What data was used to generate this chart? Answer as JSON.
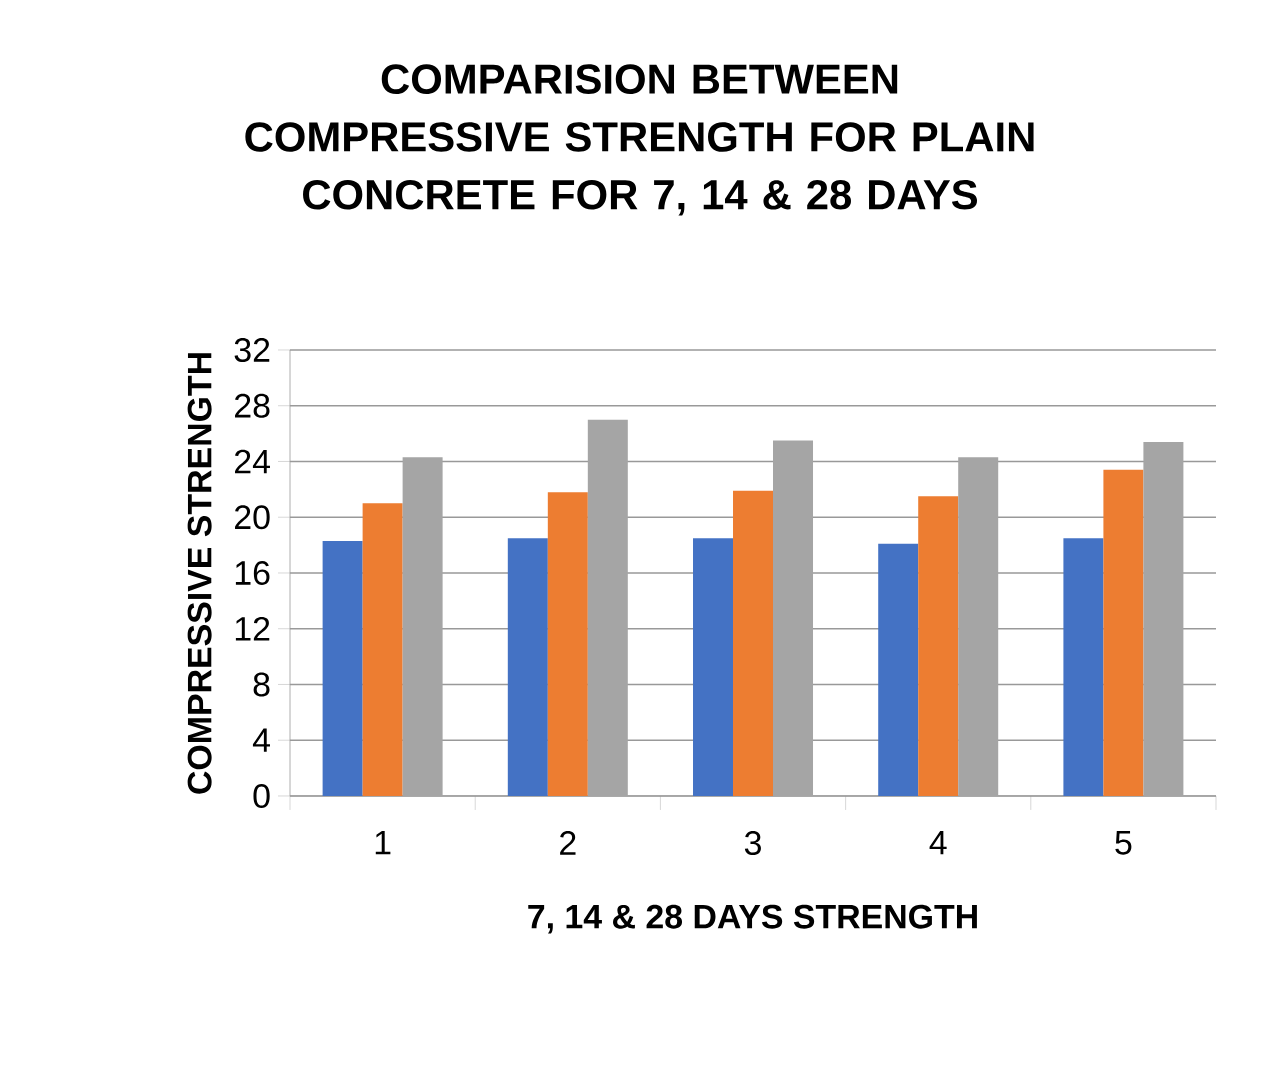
{
  "chart_data": {
    "type": "bar",
    "title": "COMPARISION BETWEEN COMPRESSIVE STRENGTH FOR PLAIN CONCRETE FOR 7, 14 & 28 DAYS",
    "xlabel": "7, 14 & 28 DAYS STRENGTH",
    "ylabel": "COMPRESSIVE STRENGTH",
    "categories": [
      "1",
      "2",
      "3",
      "4",
      "5"
    ],
    "series": [
      {
        "color": "#4472c4",
        "values": [
          18.3,
          18.5,
          18.5,
          18.1,
          18.5
        ]
      },
      {
        "color": "#ed7d31",
        "values": [
          21.0,
          21.8,
          21.9,
          21.5,
          23.4
        ]
      },
      {
        "color": "#a5a5a5",
        "values": [
          24.3,
          27.0,
          25.5,
          24.3,
          25.4
        ]
      }
    ],
    "ylim": [
      0,
      32
    ],
    "yticks": [
      0,
      4,
      8,
      12,
      16,
      20,
      24,
      28,
      32
    ],
    "grid": "y"
  }
}
